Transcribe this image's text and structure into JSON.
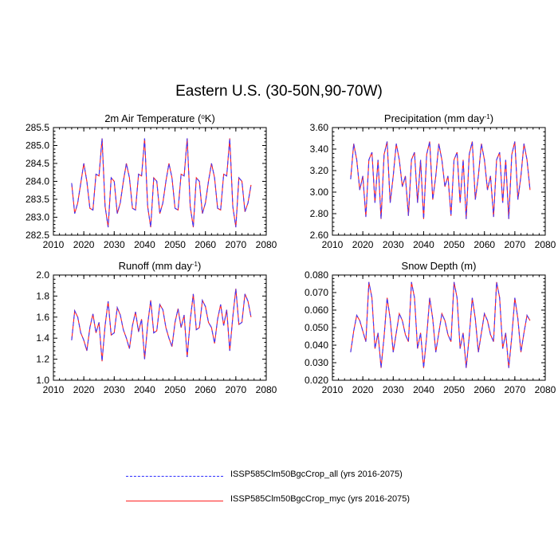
{
  "figure": {
    "title": "Eastern U.S. (30-50N,90-70W)"
  },
  "colors": {
    "series_all": "#3b3bff",
    "series_myc": "#ff2020"
  },
  "legend": {
    "entries": [
      {
        "label": "ISSP585Clm50BgcCrop_all (yrs 2016-2075)",
        "style": "dashed",
        "color": "#3b3bff"
      },
      {
        "label": "ISSP585Clm50BgcCrop_myc (yrs 2016-2075)",
        "style": "solid",
        "color": "#ff2020"
      }
    ]
  },
  "chart_data": [
    {
      "type": "line",
      "title": "2m Air Temperature (°K)",
      "xlim": [
        2010,
        2080
      ],
      "ylim": [
        282.5,
        285.5
      ],
      "xticks": [
        2010,
        2020,
        2030,
        2040,
        2050,
        2060,
        2070,
        2080
      ],
      "yticks": [
        282.5,
        283.0,
        283.5,
        284.0,
        284.5,
        285.0,
        285.5
      ],
      "ytick_labels": [
        "282.5",
        "283.0",
        "283.5",
        "284.0",
        "284.5",
        "285.0",
        "285.5"
      ],
      "x_start": 2016,
      "series": [
        {
          "name": "ISSP585Clm50BgcCrop_all (yrs 2016-2075)",
          "values": [
            283.95,
            283.1,
            283.4,
            283.95,
            284.5,
            284.0,
            283.25,
            283.2,
            284.2,
            284.15,
            285.2,
            283.3,
            282.72,
            284.1,
            284.0,
            283.1,
            283.4,
            284.0,
            284.5,
            284.1,
            283.25,
            283.2,
            284.2,
            284.15,
            285.2,
            283.3,
            282.72,
            284.1,
            284.0,
            283.1,
            283.4,
            284.0,
            284.5,
            284.1,
            283.25,
            283.2,
            284.2,
            284.15,
            285.2,
            283.3,
            282.72,
            284.1,
            284.0,
            283.1,
            283.4,
            284.0,
            284.5,
            284.1,
            283.25,
            283.2,
            284.2,
            284.15,
            285.2,
            283.3,
            282.72,
            284.1,
            284.0,
            283.15,
            283.4,
            283.9
          ]
        },
        {
          "name": "ISSP585Clm50BgcCrop_myc (yrs 2016-2075)",
          "values": [
            283.95,
            283.1,
            283.4,
            283.95,
            284.5,
            284.0,
            283.25,
            283.2,
            284.2,
            284.15,
            285.2,
            283.3,
            282.72,
            284.1,
            284.0,
            283.1,
            283.4,
            284.0,
            284.5,
            284.1,
            283.25,
            283.2,
            284.2,
            284.15,
            285.2,
            283.3,
            282.72,
            284.1,
            284.0,
            283.1,
            283.4,
            284.0,
            284.5,
            284.1,
            283.25,
            283.2,
            284.2,
            284.15,
            285.2,
            283.3,
            282.72,
            284.1,
            284.0,
            283.1,
            283.4,
            284.0,
            284.5,
            284.1,
            283.25,
            283.2,
            284.2,
            284.15,
            285.2,
            283.3,
            282.72,
            284.1,
            284.0,
            283.15,
            283.4,
            283.9
          ]
        }
      ]
    },
    {
      "type": "line",
      "title": "Precipitation (mm day-1)",
      "xlim": [
        2010,
        2080
      ],
      "ylim": [
        2.6,
        3.6
      ],
      "xticks": [
        2010,
        2020,
        2030,
        2040,
        2050,
        2060,
        2070,
        2080
      ],
      "yticks": [
        2.6,
        2.8,
        3.0,
        3.2,
        3.4,
        3.6
      ],
      "ytick_labels": [
        "2.60",
        "2.80",
        "3.00",
        "3.20",
        "3.40",
        "3.60"
      ],
      "x_start": 2016,
      "series": [
        {
          "name": "ISSP585Clm50BgcCrop_all (yrs 2016-2075)",
          "values": [
            3.12,
            3.45,
            3.3,
            3.02,
            3.15,
            2.77,
            3.3,
            3.37,
            2.9,
            3.3,
            2.75,
            3.35,
            3.47,
            2.9,
            3.15,
            3.45,
            3.3,
            3.05,
            3.15,
            2.78,
            3.3,
            3.37,
            2.9,
            3.3,
            2.75,
            3.35,
            3.47,
            2.93,
            3.15,
            3.45,
            3.3,
            3.05,
            3.15,
            2.78,
            3.3,
            3.37,
            2.9,
            3.3,
            2.75,
            3.35,
            3.47,
            2.93,
            3.15,
            3.45,
            3.3,
            3.02,
            3.15,
            2.77,
            3.3,
            3.37,
            2.9,
            3.3,
            2.75,
            3.35,
            3.47,
            2.93,
            3.15,
            3.45,
            3.3,
            3.02
          ]
        },
        {
          "name": "ISSP585Clm50BgcCrop_myc (yrs 2016-2075)",
          "values": [
            3.12,
            3.45,
            3.3,
            3.02,
            3.15,
            2.77,
            3.3,
            3.37,
            2.9,
            3.3,
            2.75,
            3.35,
            3.47,
            2.9,
            3.15,
            3.45,
            3.3,
            3.05,
            3.15,
            2.78,
            3.3,
            3.37,
            2.9,
            3.3,
            2.75,
            3.35,
            3.47,
            2.93,
            3.15,
            3.45,
            3.3,
            3.05,
            3.15,
            2.78,
            3.3,
            3.37,
            2.9,
            3.3,
            2.75,
            3.35,
            3.47,
            2.93,
            3.15,
            3.45,
            3.3,
            3.02,
            3.15,
            2.77,
            3.3,
            3.37,
            2.9,
            3.3,
            2.75,
            3.35,
            3.47,
            2.93,
            3.15,
            3.45,
            3.3,
            3.02
          ]
        }
      ]
    },
    {
      "type": "line",
      "title": "Runoff (mm day-1)",
      "xlim": [
        2010,
        2080
      ],
      "ylim": [
        1.0,
        2.0
      ],
      "xticks": [
        2010,
        2020,
        2030,
        2040,
        2050,
        2060,
        2070,
        2080
      ],
      "yticks": [
        1.0,
        1.2,
        1.4,
        1.6,
        1.8,
        2.0
      ],
      "ytick_labels": [
        "1.0",
        "1.2",
        "1.4",
        "1.6",
        "1.8",
        "2.0"
      ],
      "x_start": 2016,
      "series": [
        {
          "name": "ISSP585Clm50BgcCrop_all (yrs 2016-2075)",
          "values": [
            1.38,
            1.66,
            1.6,
            1.45,
            1.38,
            1.28,
            1.5,
            1.63,
            1.45,
            1.55,
            1.18,
            1.52,
            1.75,
            1.43,
            1.45,
            1.69,
            1.62,
            1.48,
            1.4,
            1.3,
            1.52,
            1.65,
            1.46,
            1.58,
            1.2,
            1.53,
            1.76,
            1.45,
            1.47,
            1.72,
            1.67,
            1.5,
            1.4,
            1.32,
            1.55,
            1.68,
            1.5,
            1.62,
            1.22,
            1.57,
            1.82,
            1.48,
            1.5,
            1.76,
            1.7,
            1.55,
            1.5,
            1.35,
            1.58,
            1.72,
            1.52,
            1.67,
            1.28,
            1.6,
            1.87,
            1.53,
            1.55,
            1.82,
            1.75,
            1.6
          ]
        },
        {
          "name": "ISSP585Clm50BgcCrop_myc (yrs 2016-2075)",
          "values": [
            1.38,
            1.66,
            1.6,
            1.45,
            1.38,
            1.28,
            1.5,
            1.63,
            1.45,
            1.55,
            1.18,
            1.52,
            1.75,
            1.43,
            1.45,
            1.69,
            1.62,
            1.48,
            1.4,
            1.3,
            1.52,
            1.65,
            1.46,
            1.58,
            1.2,
            1.53,
            1.76,
            1.45,
            1.47,
            1.72,
            1.67,
            1.5,
            1.4,
            1.32,
            1.55,
            1.68,
            1.5,
            1.62,
            1.22,
            1.57,
            1.82,
            1.48,
            1.5,
            1.76,
            1.7,
            1.55,
            1.5,
            1.35,
            1.58,
            1.72,
            1.52,
            1.67,
            1.28,
            1.6,
            1.87,
            1.53,
            1.55,
            1.82,
            1.75,
            1.6
          ]
        }
      ]
    },
    {
      "type": "line",
      "title": "Snow Depth (m)",
      "xlim": [
        2010,
        2080
      ],
      "ylim": [
        0.02,
        0.08
      ],
      "xticks": [
        2010,
        2020,
        2030,
        2040,
        2050,
        2060,
        2070,
        2080
      ],
      "yticks": [
        0.02,
        0.03,
        0.04,
        0.05,
        0.06,
        0.07,
        0.08
      ],
      "ytick_labels": [
        "0.020",
        "0.030",
        "0.040",
        "0.050",
        "0.060",
        "0.070",
        "0.080"
      ],
      "x_start": 2016,
      "series": [
        {
          "name": "ISSP585Clm50BgcCrop_all (yrs 2016-2075)",
          "values": [
            0.036,
            0.048,
            0.057,
            0.054,
            0.048,
            0.042,
            0.076,
            0.067,
            0.038,
            0.047,
            0.027,
            0.045,
            0.067,
            0.055,
            0.036,
            0.047,
            0.058,
            0.054,
            0.046,
            0.042,
            0.076,
            0.067,
            0.038,
            0.047,
            0.027,
            0.045,
            0.067,
            0.055,
            0.036,
            0.047,
            0.058,
            0.054,
            0.046,
            0.042,
            0.076,
            0.067,
            0.038,
            0.047,
            0.027,
            0.045,
            0.067,
            0.055,
            0.036,
            0.047,
            0.058,
            0.054,
            0.046,
            0.042,
            0.076,
            0.067,
            0.038,
            0.047,
            0.027,
            0.045,
            0.067,
            0.055,
            0.036,
            0.047,
            0.057,
            0.054
          ]
        },
        {
          "name": "ISSP585Clm50BgcCrop_myc (yrs 2016-2075)",
          "values": [
            0.036,
            0.048,
            0.057,
            0.054,
            0.048,
            0.042,
            0.076,
            0.067,
            0.038,
            0.047,
            0.027,
            0.045,
            0.067,
            0.055,
            0.036,
            0.047,
            0.058,
            0.054,
            0.046,
            0.042,
            0.076,
            0.067,
            0.038,
            0.047,
            0.027,
            0.045,
            0.067,
            0.055,
            0.036,
            0.047,
            0.058,
            0.054,
            0.046,
            0.042,
            0.076,
            0.067,
            0.038,
            0.047,
            0.027,
            0.045,
            0.067,
            0.055,
            0.036,
            0.047,
            0.058,
            0.054,
            0.046,
            0.042,
            0.076,
            0.067,
            0.038,
            0.047,
            0.027,
            0.045,
            0.067,
            0.055,
            0.036,
            0.047,
            0.057,
            0.054
          ]
        }
      ]
    }
  ]
}
